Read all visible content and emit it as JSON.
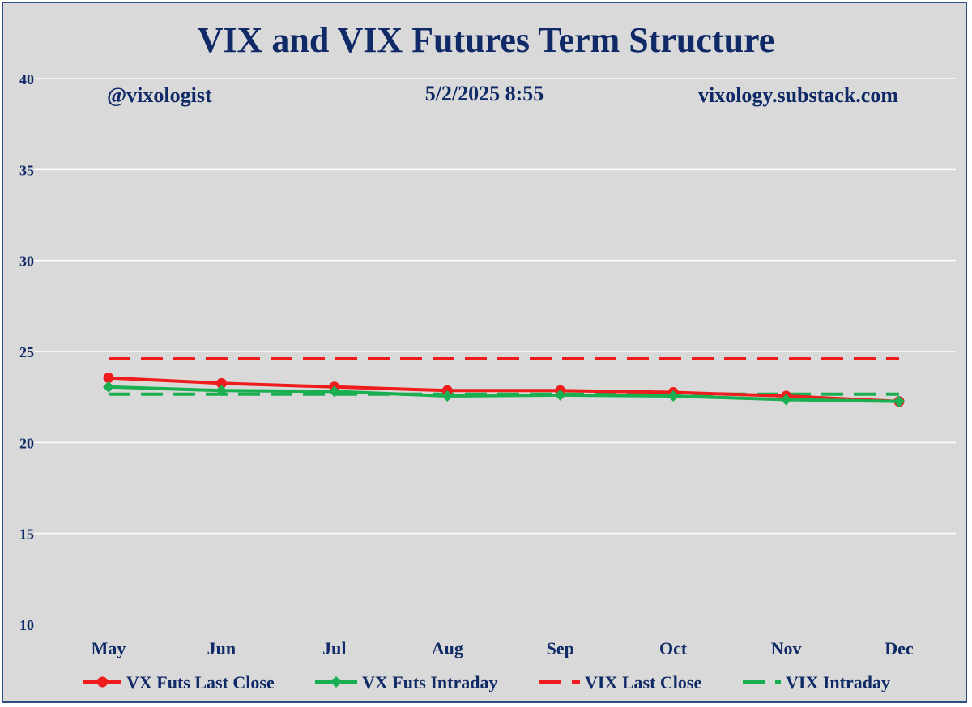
{
  "chart_data": {
    "type": "line",
    "title": "VIX and VIX Futures Term Structure",
    "annotations": {
      "left": "@vixologist",
      "center": "5/2/2025 8:55",
      "right": "vixology.substack.com"
    },
    "categories": [
      "May",
      "Jun",
      "Jul",
      "Aug",
      "Sep",
      "Oct",
      "Nov",
      "Dec"
    ],
    "ylim": [
      10,
      40
    ],
    "yticks": [
      10,
      15,
      20,
      25,
      30,
      35,
      40
    ],
    "grid": true,
    "legend_position": "bottom",
    "series": [
      {
        "name": "VX Futs Last Close",
        "style": "solid-circle",
        "color": "#ee1c1c",
        "values": [
          23.55,
          23.25,
          23.05,
          22.85,
          22.85,
          22.75,
          22.55,
          22.25
        ]
      },
      {
        "name": "VX Futs Intraday",
        "style": "solid-diamond",
        "color": "#1aaf50",
        "values": [
          23.05,
          22.85,
          22.8,
          22.55,
          22.6,
          22.55,
          22.35,
          22.25
        ]
      },
      {
        "name": "VIX Last Close",
        "style": "dashed",
        "color": "#ee1c1c",
        "values": [
          24.6,
          24.6,
          24.6,
          24.6,
          24.6,
          24.6,
          24.6,
          24.6
        ]
      },
      {
        "name": "VIX Intraday",
        "style": "dashed",
        "color": "#1aaf50",
        "values": [
          22.65,
          22.65,
          22.65,
          22.65,
          22.65,
          22.65,
          22.65,
          22.65
        ]
      }
    ]
  }
}
